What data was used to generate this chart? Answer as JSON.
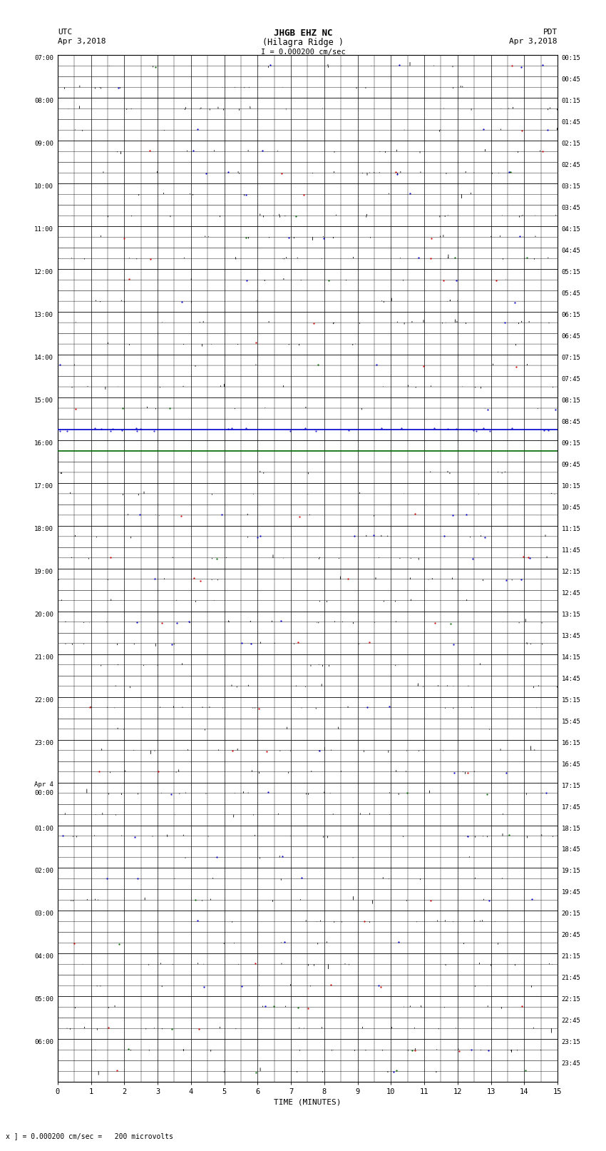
{
  "title_line1": "JHGB EHZ NC",
  "title_line2": "(Hilagra Ridge )",
  "scale_label": "I = 0.000200 cm/sec",
  "utc_label": "UTC",
  "utc_date": "Apr 3,2018",
  "pdt_label": "PDT",
  "pdt_date": "Apr 3,2018",
  "xlabel": "TIME (MINUTES)",
  "footer_label": "x ] = 0.000200 cm/sec =   200 microvolts",
  "left_labels": [
    "07:00",
    "",
    "08:00",
    "",
    "09:00",
    "",
    "10:00",
    "",
    "11:00",
    "",
    "12:00",
    "",
    "13:00",
    "",
    "14:00",
    "",
    "15:00",
    "",
    "16:00",
    "",
    "17:00",
    "",
    "18:00",
    "",
    "19:00",
    "",
    "20:00",
    "",
    "21:00",
    "",
    "22:00",
    "",
    "23:00",
    "",
    "Apr 4\n00:00",
    "",
    "01:00",
    "",
    "02:00",
    "",
    "03:00",
    "",
    "04:00",
    "",
    "05:00",
    "",
    "06:00",
    ""
  ],
  "right_labels": [
    "00:15",
    "00:45",
    "01:15",
    "01:45",
    "02:15",
    "02:45",
    "03:15",
    "03:45",
    "04:15",
    "04:45",
    "05:15",
    "05:45",
    "06:15",
    "06:45",
    "07:15",
    "07:45",
    "08:15",
    "08:45",
    "09:15",
    "09:45",
    "10:15",
    "10:45",
    "11:15",
    "11:45",
    "12:15",
    "12:45",
    "13:15",
    "13:45",
    "14:15",
    "14:45",
    "15:15",
    "15:45",
    "16:15",
    "16:45",
    "17:15",
    "17:45",
    "18:15",
    "18:45",
    "19:15",
    "19:45",
    "20:15",
    "20:45",
    "21:15",
    "21:45",
    "22:15",
    "22:45",
    "23:15",
    "23:45"
  ],
  "n_rows": 48,
  "minutes_per_row": 15,
  "bg_color": "#ffffff",
  "line_color": "#000000",
  "grid_color": "#000000",
  "blue_row": 17,
  "green_row": 18,
  "noise_seed": 42
}
